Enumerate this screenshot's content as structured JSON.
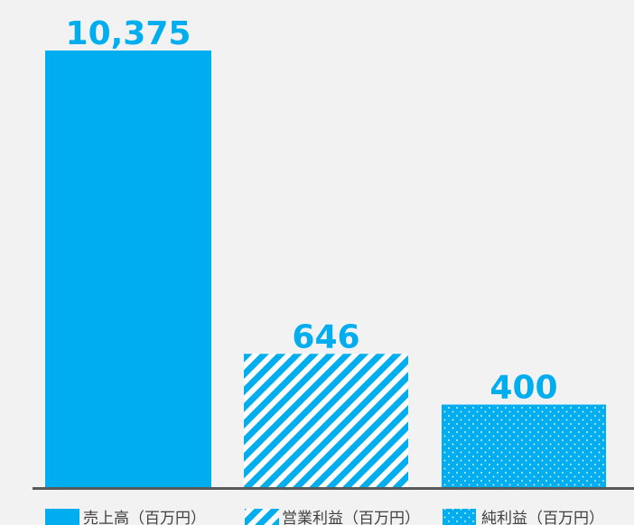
{
  "chart_data": {
    "type": "bar",
    "categories": [
      "売上高（百万円）",
      "営業利益（百万円）",
      "純利益（百万円）"
    ],
    "values": [
      10375,
      646,
      400
    ],
    "value_labels": [
      "10,375",
      "646",
      "400"
    ],
    "title": "",
    "xlabel": "",
    "ylabel": "",
    "y_scale": "broken",
    "fills": [
      "solid",
      "diagonal-stripes",
      "dots"
    ],
    "legend_position": "bottom",
    "grid": false
  },
  "colors": {
    "bar": "#00aeef",
    "background": "#f2f2f2",
    "axis": "#595959",
    "legend_text": "#404040"
  }
}
